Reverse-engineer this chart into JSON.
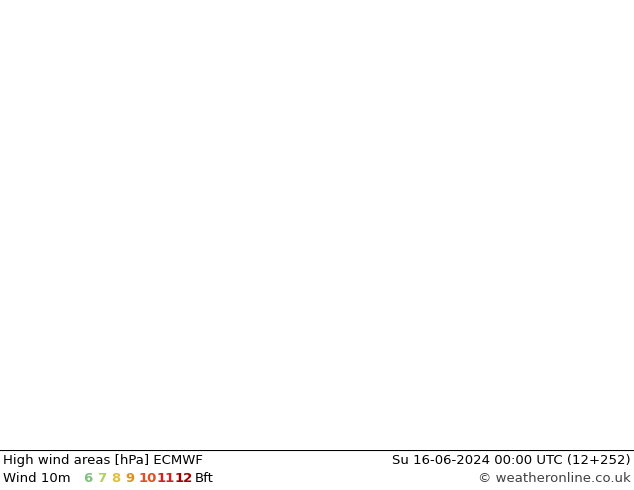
{
  "title_left": "High wind areas [hPa] ECMWF",
  "title_right": "Su 16-06-2024 00:00 UTC (12+252)",
  "subtitle_left": "Wind 10m",
  "subtitle_right": "© weatheronline.co.uk",
  "bft_label": "Bft",
  "bft_numbers": [
    "6",
    "7",
    "8",
    "9",
    "10",
    "11",
    "12"
  ],
  "bft_colors": [
    "#80c080",
    "#b0d060",
    "#e0c040",
    "#e09020",
    "#e05020",
    "#d02020",
    "#a00000"
  ],
  "background_color": "#ffffff",
  "text_color": "#000000",
  "font_size_title": 9.5,
  "font_size_legend": 9.5,
  "fig_width": 6.34,
  "fig_height": 4.9,
  "dpi": 100
}
